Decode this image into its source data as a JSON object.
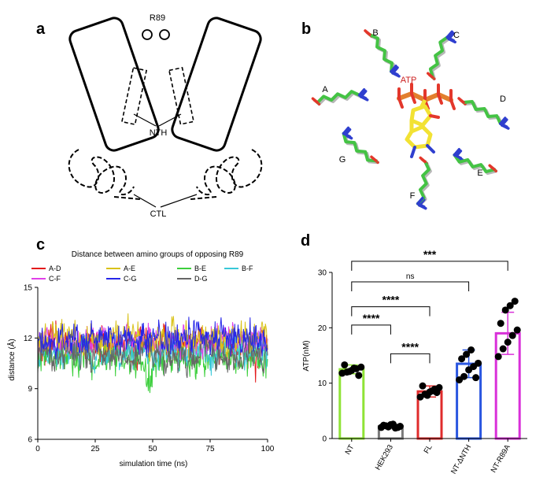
{
  "panel_letters": {
    "a": "a",
    "b": "b",
    "c": "c",
    "d": "d"
  },
  "panel_a": {
    "label_r89": "R89",
    "label_nth": "NTH",
    "label_ctl": "CTL"
  },
  "panel_b": {
    "chain_labels": [
      "A",
      "B",
      "C",
      "D",
      "E",
      "F",
      "G"
    ],
    "ligand_label": "ATP",
    "colors": {
      "carbon_md": "#44c344",
      "carbon_ref": "#b7b7b7",
      "nitrogen": "#2f3fcf",
      "oxygen": "#e3372b",
      "atp_carbon": "#f2e234",
      "phosphorus": "#e27f2e",
      "ligand_label": "#cc2222"
    }
  },
  "chart_data": [
    {
      "type": "line",
      "title": "Distance between amino groups of opposing R89",
      "xlabel": "simulation time (ns)",
      "ylabel": "distance (Å)",
      "xlim": [
        0,
        100
      ],
      "ylim": [
        6,
        15
      ],
      "x_ticks": [
        0,
        25,
        50,
        75,
        100
      ],
      "y_ticks": [
        6,
        9,
        12,
        15
      ],
      "legend": [
        {
          "name": "A-D",
          "color": "#e31a1c"
        },
        {
          "name": "A-E",
          "color": "#d9c21a"
        },
        {
          "name": "B-E",
          "color": "#3ccf3c"
        },
        {
          "name": "B-F",
          "color": "#38c8d8"
        },
        {
          "name": "C-F",
          "color": "#e040e8"
        },
        {
          "name": "C-G",
          "color": "#2626e8"
        },
        {
          "name": "D-G",
          "color": "#666666"
        }
      ],
      "series": [
        {
          "name": "A-D",
          "mean": 11.5,
          "spread": 1.0,
          "color": "#e31a1c"
        },
        {
          "name": "A-E",
          "mean": 12.0,
          "spread": 0.9,
          "color": "#d9c21a"
        },
        {
          "name": "B-E",
          "mean": 10.8,
          "spread": 1.0,
          "color": "#3ccf3c"
        },
        {
          "name": "B-F",
          "mean": 11.2,
          "spread": 0.9,
          "color": "#38c8d8"
        },
        {
          "name": "C-F",
          "mean": 11.8,
          "spread": 0.8,
          "color": "#e040e8"
        },
        {
          "name": "C-G",
          "mean": 12.0,
          "spread": 0.9,
          "color": "#2626e8"
        },
        {
          "name": "D-G",
          "mean": 11.0,
          "spread": 0.9,
          "color": "#666666"
        }
      ],
      "legend_placement": "top"
    },
    {
      "type": "bar",
      "ylabel": "ATP(nM)",
      "ylim": [
        0,
        30
      ],
      "y_ticks": [
        0,
        10,
        20,
        30
      ],
      "categories": [
        "NT",
        "HEK293",
        "FL",
        "NT-ΔNTH",
        "NT-R89A"
      ],
      "values": [
        12.5,
        2.2,
        8.5,
        13.5,
        19.0
      ],
      "errors": [
        0.8,
        0.4,
        1.0,
        2.5,
        3.8
      ],
      "colors": [
        "#8fe336",
        "#7a7a7a",
        "#e02b2b",
        "#2a56e0",
        "#d930d9"
      ],
      "points": [
        [
          11.8,
          12.0,
          12.3,
          12.6,
          12.9,
          13.3,
          12.1,
          12.7,
          11.4
        ],
        [
          2.0,
          2.3,
          2.5,
          1.9,
          2.2,
          2.4,
          2.1,
          2.6,
          2.0
        ],
        [
          7.5,
          8.0,
          8.4,
          8.9,
          9.2,
          9.5,
          7.8,
          8.6,
          8.3
        ],
        [
          10.6,
          11.2,
          12.4,
          13.0,
          13.6,
          14.4,
          15.2,
          16.0,
          11.0
        ],
        [
          14.8,
          16.2,
          17.4,
          18.6,
          19.6,
          20.8,
          23.2,
          24.0,
          24.8
        ]
      ],
      "comparisons": [
        {
          "label": "****",
          "from": "NT",
          "to": "HEK293",
          "y": 20.5
        },
        {
          "label": "****",
          "from": "HEK293",
          "to": "FL",
          "y": 15.3
        },
        {
          "label": "****",
          "from": "NT",
          "to": "FL",
          "y": 23.8
        },
        {
          "label": "ns",
          "from": "NT",
          "to": "NT-ΔNTH",
          "y": 28.3
        },
        {
          "label": "***",
          "from": "NT",
          "to": "NT-R89A",
          "y": 32.0
        }
      ]
    }
  ]
}
